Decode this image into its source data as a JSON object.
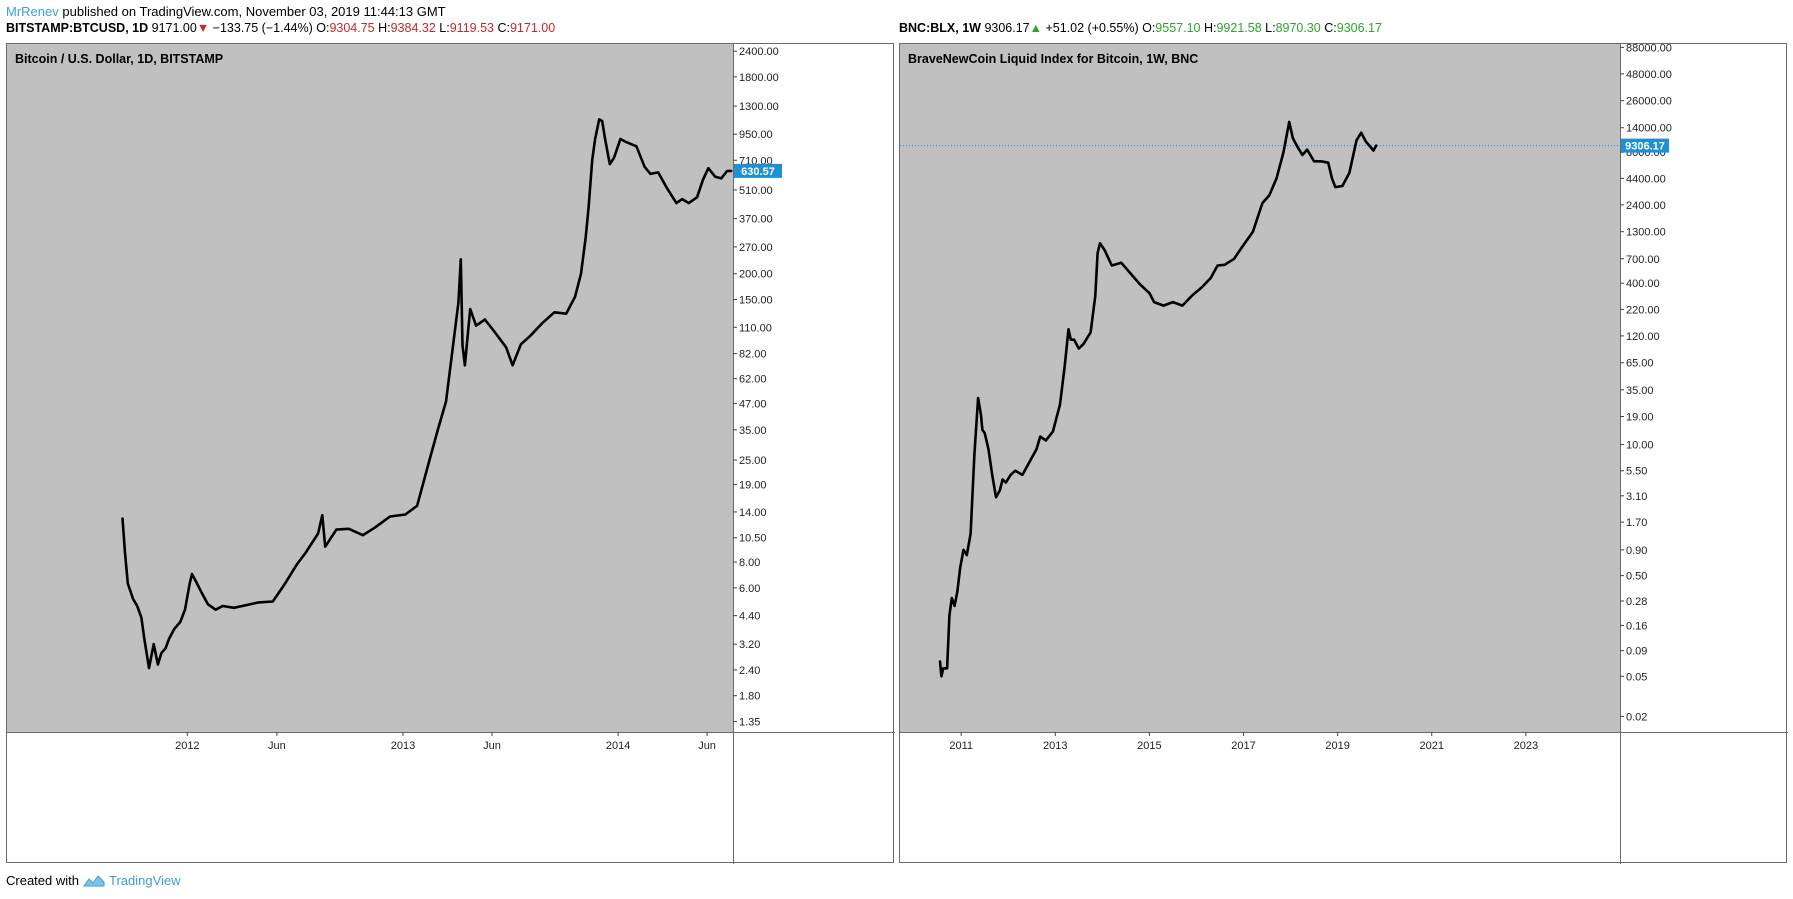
{
  "header": {
    "author": "MrRenev",
    "published_text": "published on TradingView.com, November 03, 2019 11:44:13 GMT"
  },
  "left_header": {
    "symbol": "BITSTAMP:BTCUSD, 1D",
    "last": "9171.00",
    "direction": "down",
    "change": "−133.75 (−1.44%)",
    "o_label": "O:",
    "o": "9304.75",
    "h_label": "H:",
    "h": "9384.32",
    "l_label": "L:",
    "l": "9119.53",
    "c_label": "C:",
    "c": "9171.00"
  },
  "right_header": {
    "symbol": "BNC:BLX, 1W",
    "last": "9306.17",
    "direction": "up",
    "change": "+51.02 (+0.55%)",
    "o_label": "O:",
    "o": "9557.10",
    "h_label": "H:",
    "h": "9921.58",
    "l_label": "L:",
    "l": "8970.30",
    "c_label": "C:",
    "c": "9306.17"
  },
  "footer": {
    "created_with": "Created with",
    "brand": "TradingView"
  },
  "colors": {
    "plot_background": "#c0c0c0",
    "line": "#000000",
    "price_tag": "#1e90d6",
    "down": "#c62828",
    "up": "#2aa52a",
    "author": "#3d9fd6"
  },
  "chart_data": [
    {
      "type": "line",
      "title": "Bitcoin / U.S. Dollar, 1D, BITSTAMP",
      "y_scale": "log",
      "ylim": [
        1.2,
        2600
      ],
      "y_ticks": [
        1.35,
        1.8,
        2.4,
        3.2,
        4.4,
        6.0,
        8.0,
        10.5,
        14.0,
        19.0,
        25.0,
        35.0,
        47.0,
        62.0,
        82.0,
        110.0,
        150.0,
        200.0,
        270.0,
        370.0,
        510.0,
        710.0,
        950.0,
        1300.0,
        1800.0,
        2400.0
      ],
      "y_tick_labels": [
        "1.35",
        "1.80",
        "2.40",
        "3.20",
        "4.40",
        "6.00",
        "8.00",
        "10.50",
        "14.00",
        "19.00",
        "25.00",
        "35.00",
        "47.00",
        "62.00",
        "82.00",
        "110.00",
        "150.00",
        "200.00",
        "270.00",
        "370.00",
        "510.00",
        "710.00",
        "950.00",
        "1300.00",
        "1800.00",
        "2400.00"
      ],
      "xlim": [
        "2011-03-01",
        "2014-07-15"
      ],
      "x_ticks": [
        "2012-01-01",
        "2012-06-01",
        "2013-01-01",
        "2013-06-01",
        "2014-01-01",
        "2014-06-01"
      ],
      "x_tick_labels": [
        "2012",
        "Jun",
        "2013",
        "Jun",
        "2014",
        "Jun"
      ],
      "last_value_label": "630.57",
      "last_value": 630.57,
      "grid": false,
      "x": [
        "2011-09-13",
        "2011-09-17",
        "2011-09-22",
        "2011-10-01",
        "2011-10-08",
        "2011-10-15",
        "2011-10-20",
        "2011-10-28",
        "2011-11-05",
        "2011-11-12",
        "2011-11-18",
        "2011-11-25",
        "2011-12-01",
        "2011-12-10",
        "2011-12-20",
        "2011-12-28",
        "2012-01-05",
        "2012-01-09",
        "2012-01-15",
        "2012-01-25",
        "2012-02-05",
        "2012-02-18",
        "2012-03-01",
        "2012-03-20",
        "2012-04-10",
        "2012-05-01",
        "2012-05-25",
        "2012-06-15",
        "2012-07-05",
        "2012-07-20",
        "2012-08-10",
        "2012-08-17",
        "2012-08-22",
        "2012-09-10",
        "2012-10-01",
        "2012-10-25",
        "2012-11-15",
        "2012-12-10",
        "2013-01-05",
        "2013-01-25",
        "2013-02-15",
        "2013-03-01",
        "2013-03-15",
        "2013-03-28",
        "2013-04-05",
        "2013-04-09",
        "2013-04-12",
        "2013-04-16",
        "2013-04-25",
        "2013-05-05",
        "2013-05-20",
        "2013-06-05",
        "2013-06-25",
        "2013-07-06",
        "2013-07-20",
        "2013-08-05",
        "2013-08-25",
        "2013-09-15",
        "2013-10-05",
        "2013-10-20",
        "2013-10-30",
        "2013-11-07",
        "2013-11-12",
        "2013-11-18",
        "2013-11-23",
        "2013-11-30",
        "2013-12-05",
        "2013-12-10",
        "2013-12-18",
        "2013-12-25",
        "2014-01-05",
        "2014-01-15",
        "2014-02-01",
        "2014-02-15",
        "2014-02-25",
        "2014-03-10",
        "2014-03-25",
        "2014-04-10",
        "2014-04-20",
        "2014-05-01",
        "2014-05-15",
        "2014-05-25",
        "2014-06-03",
        "2014-06-15",
        "2014-06-25",
        "2014-07-05",
        "2014-07-12"
      ],
      "y": [
        13.0,
        9.0,
        6.3,
        5.3,
        4.9,
        4.3,
        3.4,
        2.45,
        3.2,
        2.55,
        2.9,
        3.05,
        3.4,
        3.8,
        4.1,
        4.7,
        6.3,
        7.0,
        6.5,
        5.7,
        5.0,
        4.7,
        4.9,
        4.8,
        4.95,
        5.1,
        5.15,
        6.3,
        7.8,
        8.9,
        11.0,
        13.5,
        9.5,
        11.5,
        11.6,
        10.8,
        11.8,
        13.3,
        13.6,
        15.0,
        25.0,
        35.0,
        48.0,
        95.0,
        145.0,
        235.0,
        90.0,
        72.0,
        135.0,
        112.0,
        120.0,
        105.0,
        88.0,
        72.0,
        91.0,
        100.0,
        115.0,
        130.0,
        128.0,
        155.0,
        200.0,
        300.0,
        420.0,
        710.0,
        900.0,
        1120.0,
        1100.0,
        900.0,
        680.0,
        730.0,
        900.0,
        870.0,
        830.0,
        660.0,
        610.0,
        620.0,
        520.0,
        440.0,
        460.0,
        440.0,
        470.0,
        570.0,
        650.0,
        590.0,
        580.0,
        630.0,
        630.57
      ]
    },
    {
      "type": "line",
      "title": "BraveNewCoin Liquid Index for Bitcoin, 1W, BNC",
      "y_scale": "log",
      "ylim": [
        0.014,
        95000
      ],
      "y_ticks": [
        0.02,
        0.05,
        0.09,
        0.16,
        0.28,
        0.5,
        0.9,
        1.7,
        3.1,
        5.5,
        10.0,
        19.0,
        35.0,
        65.0,
        120.0,
        220.0,
        400.0,
        700.0,
        1300.0,
        2400.0,
        4400.0,
        8000.0,
        14000.0,
        26000.0,
        48000.0,
        88000.0
      ],
      "y_tick_labels": [
        "0.02",
        "0.05",
        "0.09",
        "0.16",
        "0.28",
        "0.50",
        "0.90",
        "1.70",
        "3.10",
        "5.50",
        "10.00",
        "19.00",
        "35.00",
        "65.00",
        "120.00",
        "220.00",
        "400.00",
        "700.00",
        "1300.00",
        "2400.00",
        "4400.00",
        "8000.00",
        "14000.00",
        "26000.00",
        "48000.00",
        "88000.00"
      ],
      "xlim": [
        2009.7,
        2025.0
      ],
      "x_ticks": [
        2011,
        2013,
        2015,
        2017,
        2019,
        2021,
        2023
      ],
      "x_tick_labels": [
        "2011",
        "2013",
        "2015",
        "2017",
        "2019",
        "2021",
        "2023"
      ],
      "last_value_label": "9306.17",
      "last_value": 9306.17,
      "grid": false,
      "x": [
        2010.55,
        2010.58,
        2010.62,
        2010.7,
        2010.75,
        2010.8,
        2010.86,
        2010.92,
        2010.98,
        2011.05,
        2011.12,
        2011.2,
        2011.28,
        2011.36,
        2011.42,
        2011.45,
        2011.5,
        2011.58,
        2011.66,
        2011.74,
        2011.82,
        2011.88,
        2011.95,
        2012.05,
        2012.15,
        2012.3,
        2012.45,
        2012.6,
        2012.68,
        2012.8,
        2012.95,
        2013.1,
        2013.2,
        2013.28,
        2013.33,
        2013.4,
        2013.5,
        2013.6,
        2013.75,
        2013.85,
        2013.9,
        2013.95,
        2014.05,
        2014.2,
        2014.4,
        2014.6,
        2014.8,
        2015.0,
        2015.1,
        2015.3,
        2015.5,
        2015.7,
        2015.9,
        2016.1,
        2016.3,
        2016.45,
        2016.6,
        2016.8,
        2017.0,
        2017.2,
        2017.4,
        2017.55,
        2017.7,
        2017.85,
        2017.97,
        2018.05,
        2018.15,
        2018.25,
        2018.35,
        2018.5,
        2018.65,
        2018.8,
        2018.88,
        2018.95,
        2019.1,
        2019.25,
        2019.4,
        2019.5,
        2019.6,
        2019.7,
        2019.76,
        2019.82
      ],
      "y": [
        0.07,
        0.05,
        0.06,
        0.06,
        0.2,
        0.3,
        0.25,
        0.35,
        0.6,
        0.9,
        0.8,
        1.3,
        8.0,
        29.0,
        20.0,
        14.0,
        13.0,
        9.0,
        5.0,
        3.0,
        3.5,
        4.5,
        4.2,
        5.0,
        5.5,
        5.0,
        6.7,
        9.0,
        12.0,
        11.0,
        13.5,
        25.0,
        60.0,
        140.0,
        110.0,
        110.0,
        90.0,
        100.0,
        130.0,
        300.0,
        800.0,
        1000.0,
        850.0,
        600.0,
        640.0,
        500.0,
        390.0,
        320.0,
        260.0,
        240.0,
        260.0,
        240.0,
        300.0,
        360.0,
        450.0,
        600.0,
        610.0,
        700.0,
        960.0,
        1300.0,
        2500.0,
        3000.0,
        4400.0,
        8000.0,
        16000.0,
        11000.0,
        9000.0,
        7500.0,
        8500.0,
        6500.0,
        6500.0,
        6300.0,
        4400.0,
        3600.0,
        3700.0,
        5000.0,
        10500.0,
        12500.0,
        10200.0,
        9000.0,
        8300.0,
        9306.17
      ]
    }
  ]
}
